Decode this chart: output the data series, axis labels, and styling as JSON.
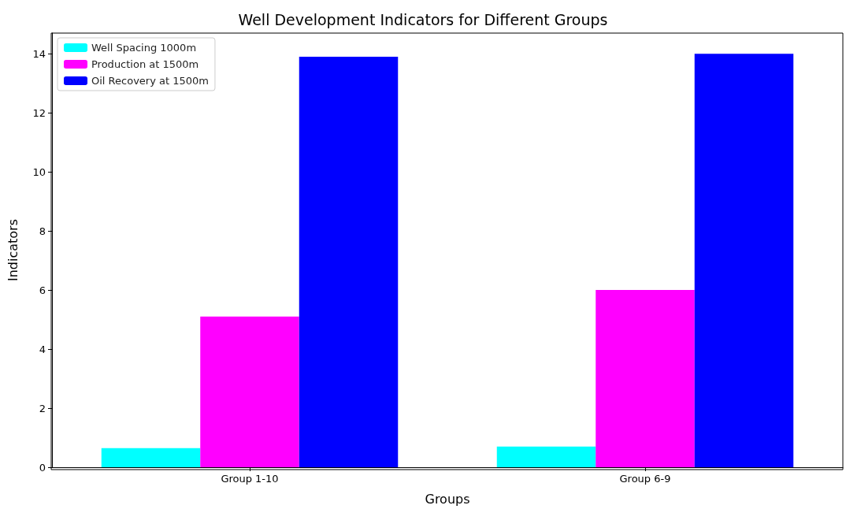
{
  "chart_data": {
    "type": "bar",
    "title": "Well Development Indicators for Different Groups",
    "xlabel": "Groups",
    "ylabel": "Indicators",
    "categories": [
      "Group 1-10",
      "Group 6-9"
    ],
    "series": [
      {
        "name": "Well Spacing 1000m",
        "color": "#00ffff",
        "values": [
          0.65,
          0.7
        ]
      },
      {
        "name": "Production at 1500m",
        "color": "#ff00ff",
        "values": [
          5.1,
          6.0
        ]
      },
      {
        "name": "Oil Recovery at 1500m",
        "color": "#0000ff",
        "values": [
          13.9,
          14.0
        ]
      }
    ],
    "ylim": [
      0,
      14.7
    ],
    "yticks": [
      0,
      2,
      4,
      6,
      8,
      10,
      12,
      14
    ],
    "grid": false,
    "legend": "top left"
  }
}
